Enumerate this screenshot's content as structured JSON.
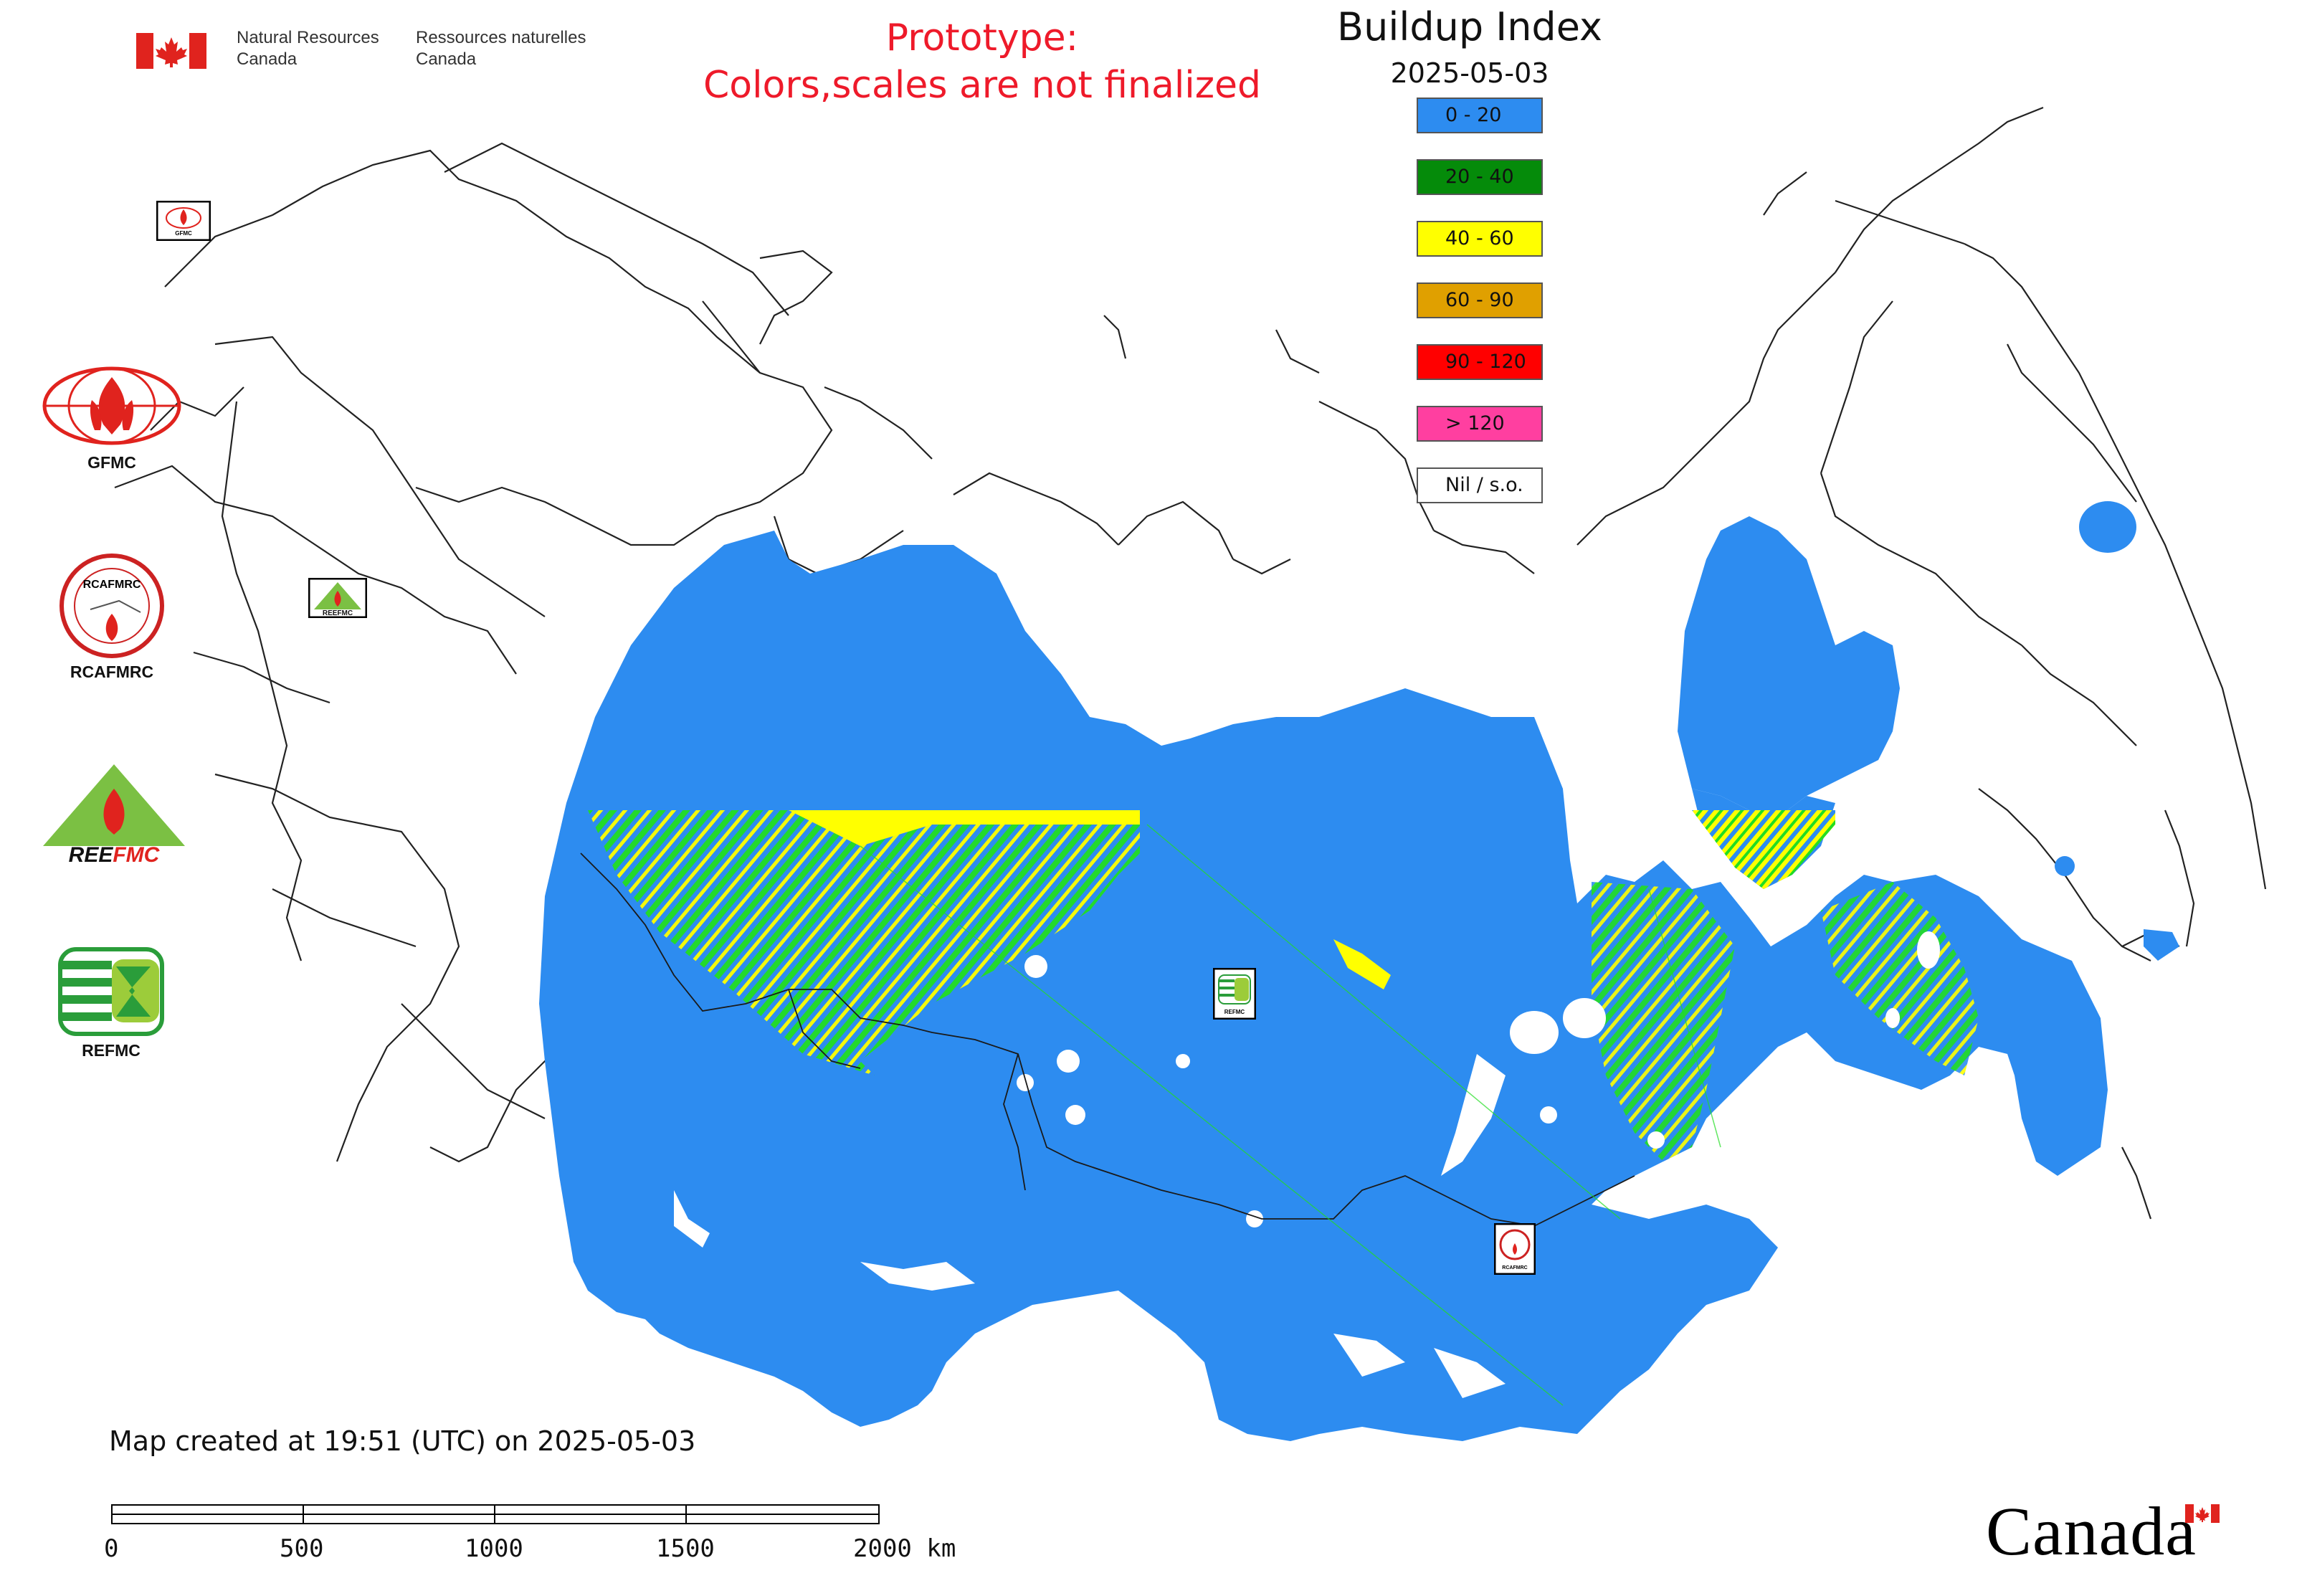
{
  "header": {
    "org_en_line1": "Natural Resources",
    "org_en_line2": "Canada",
    "org_fr_line1": "Ressources naturelles",
    "org_fr_line2": "Canada",
    "notice_line1": "Prototype:",
    "notice_line2": "Colors,scales are not finalized"
  },
  "legend": {
    "title": "Buildup Index",
    "date": "2025-05-03",
    "classes": [
      {
        "label": "0 - 20",
        "color": "#2d8cf0"
      },
      {
        "label": "20 - 40",
        "color": "#058b0a"
      },
      {
        "label": "40 - 60",
        "color": "#ffff00"
      },
      {
        "label": "60 - 90",
        "color": "#e0a000"
      },
      {
        "label": "90 - 120",
        "color": "#ff0000"
      },
      {
        "label": "> 120",
        "color": "#ff3fa0"
      },
      {
        "label": "Nil / s.o.",
        "color": "#ffffff"
      }
    ]
  },
  "logos": [
    {
      "label": "GFMC",
      "icon": "gfmc-logo-icon"
    },
    {
      "label": "RCAFMRC",
      "icon": "rcafmrc-logo-icon"
    },
    {
      "label": "REEFMC",
      "icon": "reefmc-logo-icon"
    },
    {
      "label": "REFMC",
      "icon": "refmc-logo-icon"
    }
  ],
  "map_markers": [
    {
      "label": "GFMC",
      "icon": "gfmc-marker-icon"
    },
    {
      "label": "REEFMC",
      "icon": "reefmc-marker-icon"
    },
    {
      "label": "REFMC",
      "icon": "refmc-marker-icon"
    },
    {
      "label": "RCAFMRC",
      "icon": "rcafmrc-marker-icon"
    }
  ],
  "footer": {
    "created": "Map created at 19:51 (UTC) on 2025-05-03",
    "scale_labels": [
      "0",
      "500",
      "1000",
      "1500",
      "2000 km"
    ],
    "wordmark": "Canada"
  },
  "colors": {
    "base": "#2d8cf0",
    "green": "#22dd22",
    "yellow": "#ffff00",
    "boundary": "#222222",
    "notice": "#ee1a2a",
    "flag_red": "#e0231e"
  }
}
